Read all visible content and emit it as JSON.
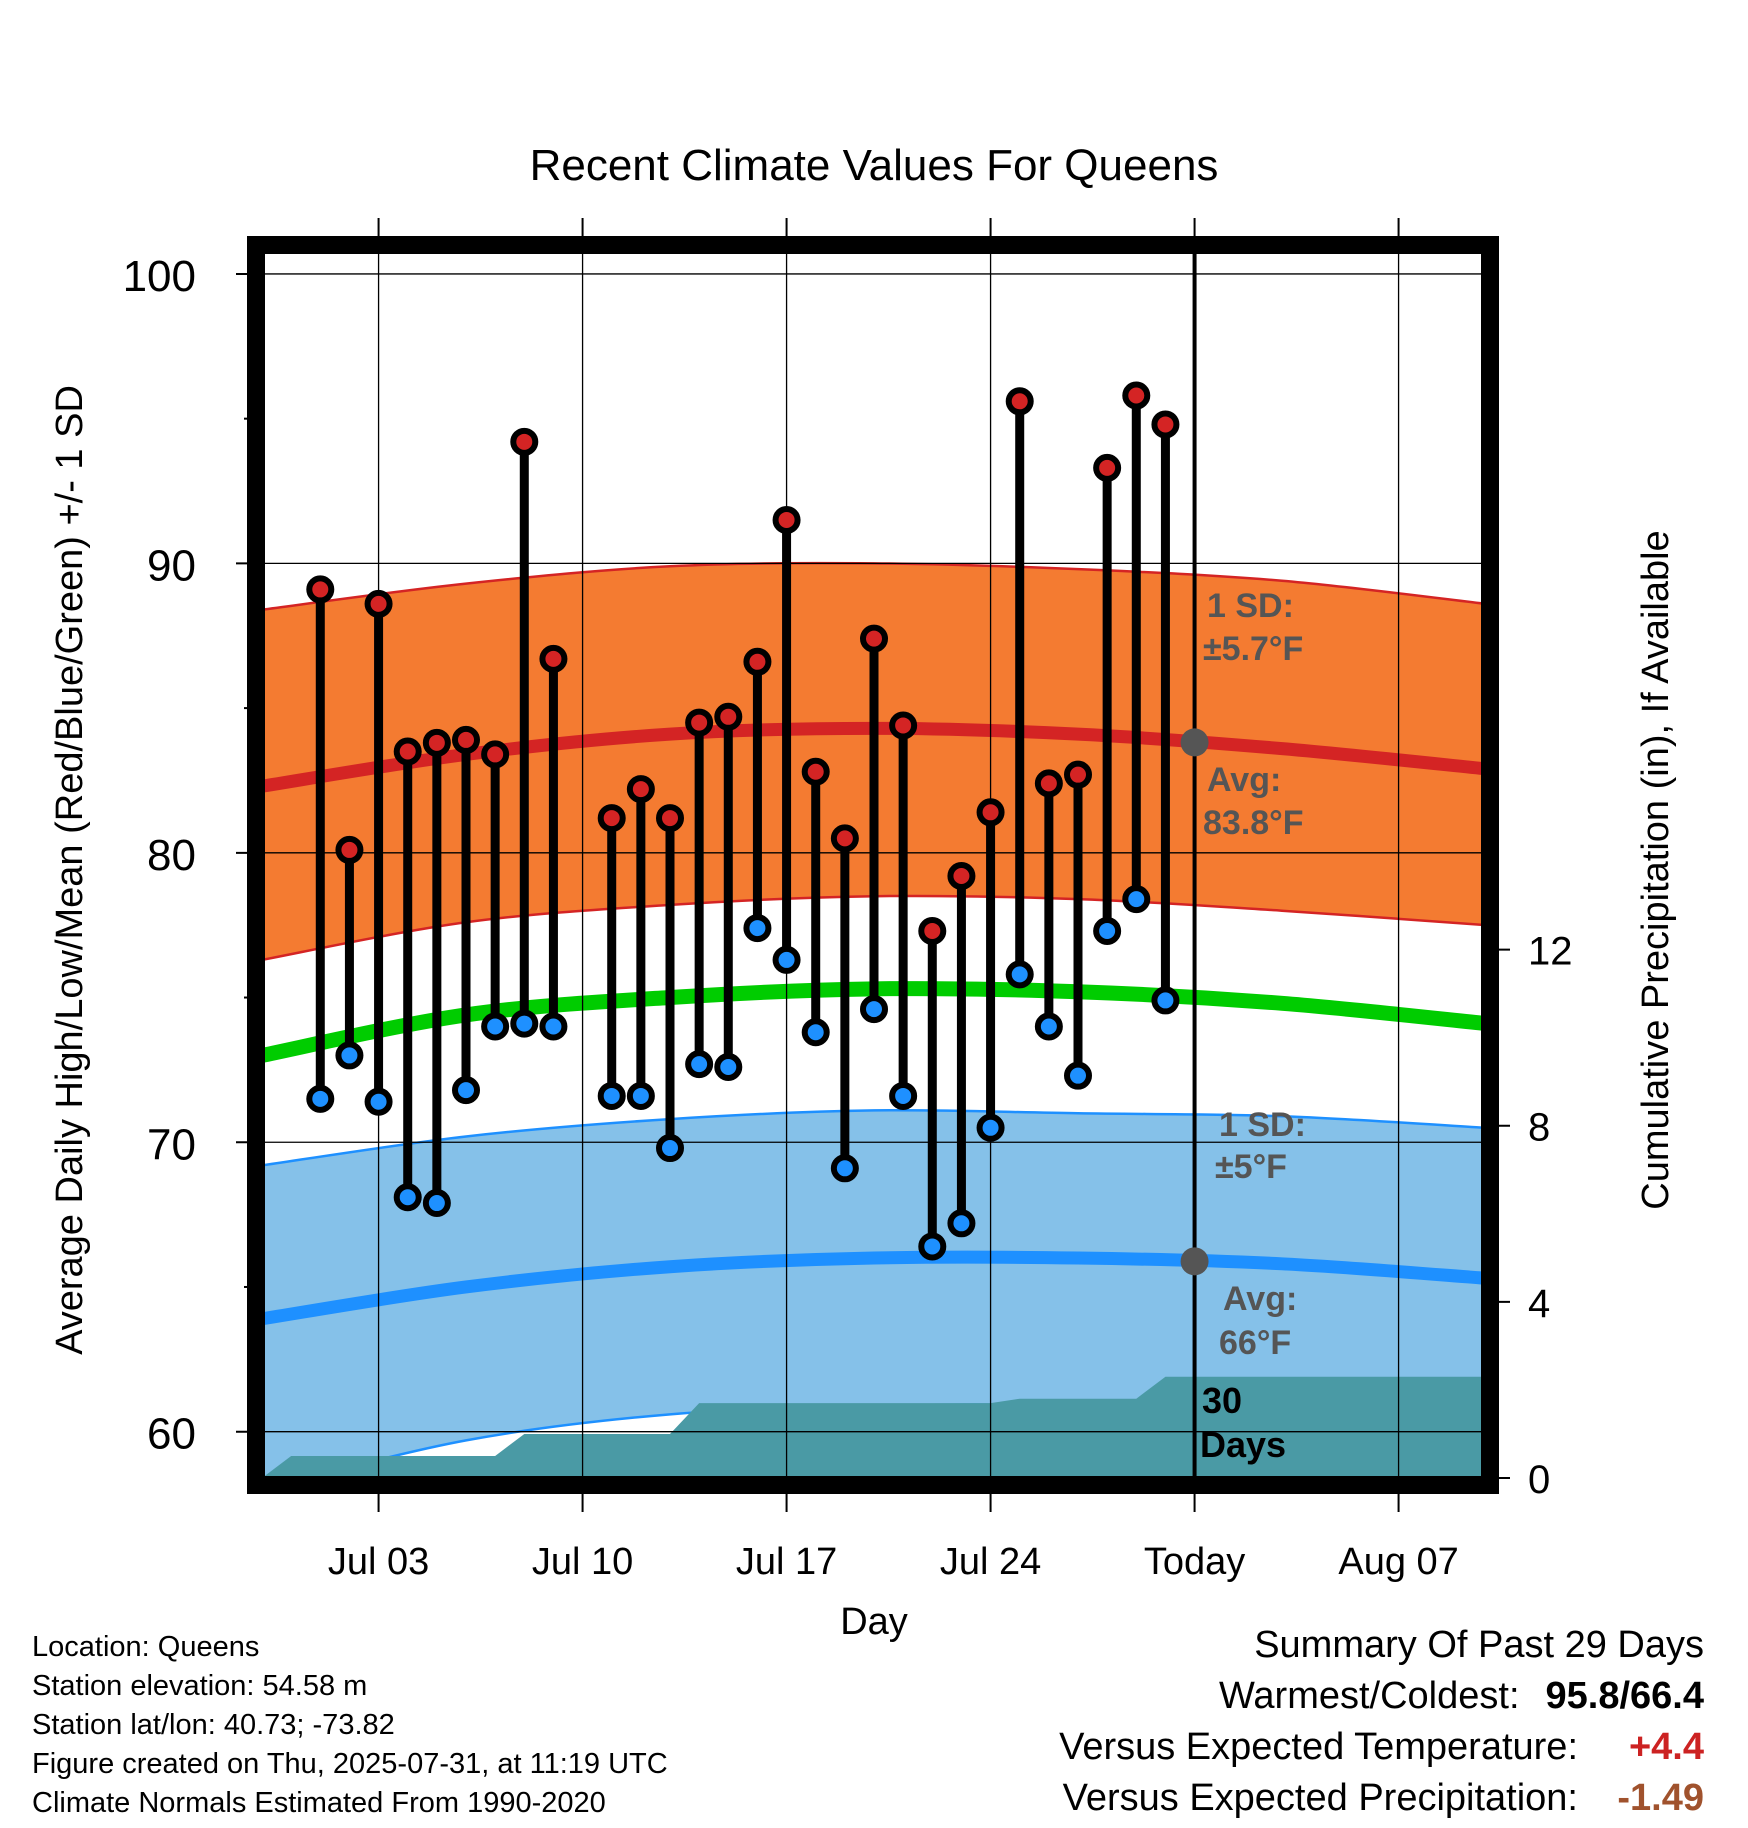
{
  "chart_data": {
    "type": "line",
    "title": "Recent Climate Values For Queens",
    "xlabel": "Day",
    "ylabel": "Average Daily High/Low/Mean (Red/Blue/Green) +/- 1 SD",
    "y2label": "Cumulative Precipitation (in), If Available",
    "ylim": [
      58.4,
      101
    ],
    "y2lim": [
      0,
      28
    ],
    "yticks": [
      60,
      70,
      80,
      90,
      100
    ],
    "y2ticks": [
      0,
      4,
      8,
      12
    ],
    "xlim": [
      "2025-06-29",
      "2025-08-10"
    ],
    "xticks": [
      {
        "date": "2025-07-03",
        "label": "Jul 03"
      },
      {
        "date": "2025-07-10",
        "label": "Jul 10"
      },
      {
        "date": "2025-07-17",
        "label": "Jul 17"
      },
      {
        "date": "2025-07-24",
        "label": "Jul 24"
      },
      {
        "date": "2025-07-31",
        "label": "Today"
      },
      {
        "date": "2025-08-07",
        "label": "Aug 07"
      }
    ],
    "today": "2025-07-31",
    "grid": true,
    "colors": {
      "high_band": "#f47b31",
      "high_line": "#d42424",
      "low_band": "#85c1e9",
      "low_line": "#1e90ff",
      "mean_line": "#00cc00",
      "precip": "#4a9aa5",
      "high_marker": "#d42424",
      "low_marker": "#1e90ff"
    },
    "normals": {
      "dates": [
        "2025-06-29",
        "2025-07-06",
        "2025-07-13",
        "2025-07-20",
        "2025-07-27",
        "2025-08-03",
        "2025-08-10"
      ],
      "high_avg": [
        82.3,
        83.4,
        84.1,
        84.3,
        84.1,
        83.6,
        82.9
      ],
      "high_upper": [
        88.4,
        89.3,
        89.9,
        90.0,
        89.8,
        89.4,
        88.6
      ],
      "high_lower": [
        76.3,
        77.6,
        78.2,
        78.5,
        78.4,
        78.0,
        77.5
      ],
      "mean": [
        73.0,
        74.4,
        75.0,
        75.3,
        75.2,
        74.8,
        74.1
      ],
      "low_avg": [
        63.9,
        65.0,
        65.7,
        66.0,
        66.0,
        65.8,
        65.3
      ],
      "low_upper": [
        69.2,
        70.2,
        70.8,
        71.1,
        71.0,
        70.9,
        70.5
      ],
      "low_lower": [
        58.0,
        59.7,
        60.6,
        60.9,
        60.9,
        60.6,
        60.1
      ]
    },
    "observed": {
      "dates": [
        "2025-07-01",
        "2025-07-02",
        "2025-07-03",
        "2025-07-04",
        "2025-07-05",
        "2025-07-06",
        "2025-07-07",
        "2025-07-08",
        "2025-07-09",
        "2025-07-11",
        "2025-07-12",
        "2025-07-13",
        "2025-07-14",
        "2025-07-15",
        "2025-07-16",
        "2025-07-17",
        "2025-07-18",
        "2025-07-19",
        "2025-07-20",
        "2025-07-21",
        "2025-07-22",
        "2025-07-23",
        "2025-07-24",
        "2025-07-25",
        "2025-07-26",
        "2025-07-27",
        "2025-07-28",
        "2025-07-29",
        "2025-07-30"
      ],
      "high": [
        89.1,
        80.1,
        88.6,
        83.5,
        83.8,
        83.9,
        83.4,
        94.2,
        86.7,
        81.2,
        82.2,
        81.2,
        84.5,
        84.7,
        86.6,
        91.5,
        82.8,
        80.5,
        87.4,
        84.4,
        77.3,
        79.2,
        81.4,
        95.6,
        82.4,
        82.7,
        93.3,
        95.8,
        94.8
      ],
      "low": [
        71.5,
        73.0,
        71.4,
        68.1,
        67.9,
        71.8,
        74.0,
        74.1,
        74.0,
        71.6,
        71.6,
        69.8,
        72.7,
        72.6,
        77.4,
        76.3,
        73.8,
        69.1,
        74.6,
        71.6,
        66.4,
        67.2,
        70.5,
        75.8,
        74.0,
        72.3,
        77.3,
        78.4,
        74.9
      ]
    },
    "precip": {
      "dates": [
        "2025-06-29",
        "2025-06-30",
        "2025-07-06",
        "2025-07-07",
        "2025-07-08",
        "2025-07-13",
        "2025-07-14",
        "2025-07-24",
        "2025-07-25",
        "2025-07-29",
        "2025-07-30",
        "2025-08-10"
      ],
      "values": [
        0.0,
        0.5,
        0.5,
        0.5,
        1.0,
        1.0,
        1.7,
        1.7,
        1.8,
        1.8,
        2.3,
        2.3
      ]
    },
    "annotations": {
      "high_sd_label": "1 SD:",
      "high_sd_value": "±5.7°F",
      "high_avg_label": "Avg:",
      "high_avg_value": "83.8°F",
      "low_sd_label": "1 SD:",
      "low_sd_value": "±5°F",
      "low_avg_label": "Avg:",
      "low_avg_value": "66°F",
      "days_number": "30",
      "days_word": "Days"
    }
  },
  "info": {
    "location": "Location: Queens",
    "elevation": "Station elevation: 54.58 m",
    "latlon": "Station lat/lon: 40.73; -73.82",
    "created": "Figure created on Thu, 2025-07-31, at 11:19 UTC",
    "normals": "Climate Normals Estimated From 1990-2020"
  },
  "summary": {
    "title": "Summary Of Past 29 Days",
    "warm_cold_label": "Warmest/Coldest:",
    "warm_cold_value": "95.8/66.4",
    "temp_label": "Versus Expected Temperature:",
    "temp_value": "+4.4",
    "temp_color": "#cc2222",
    "precip_label": "Versus Expected Precipitation:",
    "precip_value": "-1.49",
    "precip_color": "#a0522d"
  }
}
